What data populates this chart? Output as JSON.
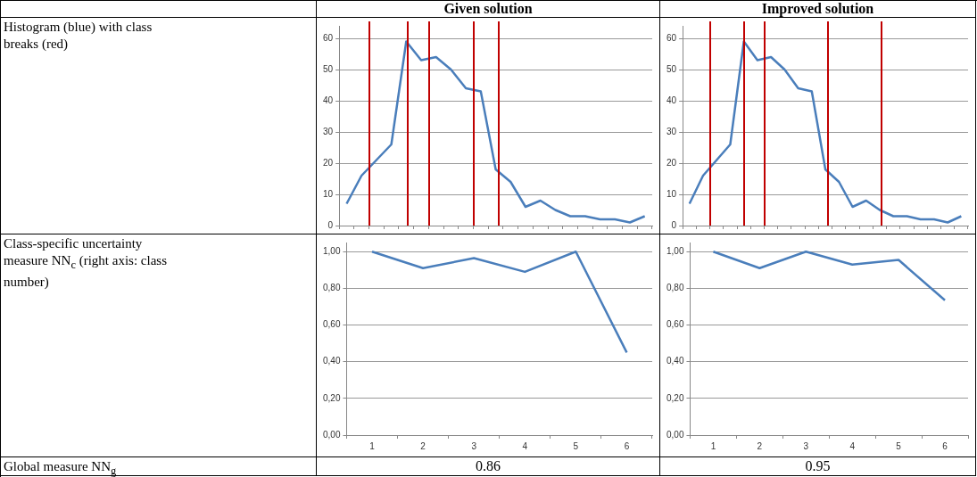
{
  "chart_data": [
    {
      "type": "other",
      "annotations": [
        "Histogram (blue) with class breaks (red)",
        "Class-specific uncertainty measure NN$_{c}$ (right axis: class number)",
        "Global measure NN$_{g}$"
      ]
    },
    {
      "type": "line",
      "title": "Given solution",
      "categories": [
        null,
        null,
        null,
        null,
        null,
        null,
        null,
        null,
        null,
        null,
        null,
        null,
        null,
        null,
        null,
        null,
        null,
        null,
        null,
        null,
        null
      ],
      "series": [
        {
          "color": "#4a7ebb",
          "values": [
            7,
            16,
            21,
            26,
            59,
            53,
            54,
            50,
            44,
            43,
            18,
            14,
            6,
            8,
            5,
            3,
            3,
            2,
            2,
            1,
            3
          ]
        }
      ],
      "ylim": [
        0,
        64
      ],
      "yticks": [
        0,
        10,
        20,
        30,
        40,
        50,
        60
      ],
      "tick_labels": "y",
      "grid": "y",
      "marker": "none",
      "line_style": "solid",
      "legend": false
    },
    {
      "type": "line",
      "title": "Improved solution",
      "categories": [
        null,
        null,
        null,
        null,
        null,
        null,
        null,
        null,
        null,
        null,
        null,
        null,
        null,
        null,
        null,
        null,
        null,
        null,
        null,
        null,
        null
      ],
      "series": [
        {
          "color": "#4a7ebb",
          "values": [
            7,
            16,
            21,
            26,
            59,
            53,
            54,
            50,
            44,
            43,
            18,
            14,
            6,
            8,
            5,
            3,
            3,
            2,
            2,
            1,
            3
          ]
        }
      ],
      "ylim": [
        0,
        64
      ],
      "yticks": [
        0,
        10,
        20,
        30,
        40,
        50,
        60
      ],
      "tick_labels": "y",
      "grid": "y",
      "marker": "none",
      "line_style": "solid",
      "legend": false
    },
    {
      "type": "line",
      "categories": [
        "1",
        "2",
        "3",
        "4",
        "5",
        "6"
      ],
      "series": [
        {
          "color": "#4a7ebb",
          "values": [
            1.0,
            0.91,
            0.965,
            0.89,
            1.0,
            0.45
          ]
        }
      ],
      "ylim": [
        0,
        1.05
      ],
      "yticks": [
        {
          "value": 0,
          "label": "0,00"
        },
        {
          "value": 0.2,
          "label": "0,20"
        },
        {
          "value": 0.4,
          "label": "0,40"
        },
        {
          "value": 0.6,
          "label": "0,60"
        },
        {
          "value": 0.8,
          "label": "0,80"
        },
        {
          "value": 1,
          "label": "1,00"
        }
      ],
      "grid": "y",
      "marker": "none",
      "line_style": "solid",
      "legend": false,
      "annotations": [
        "0.86"
      ]
    },
    {
      "type": "line",
      "categories": [
        "1",
        "2",
        "3",
        "4",
        "5",
        "6"
      ],
      "series": [
        {
          "color": "#4a7ebb",
          "values": [
            1.0,
            0.91,
            1.0,
            0.93,
            0.955,
            0.735
          ]
        }
      ],
      "ylim": [
        0,
        1.05
      ],
      "yticks": [
        {
          "value": 0,
          "label": "0,00"
        },
        {
          "value": 0.2,
          "label": "0,20"
        },
        {
          "value": 0.4,
          "label": "0,40"
        },
        {
          "value": 0.6,
          "label": "0,60"
        },
        {
          "value": 0.8,
          "label": "0,80"
        },
        {
          "value": 1,
          "label": "1,00"
        }
      ],
      "grid": "y",
      "marker": "none",
      "line_style": "solid",
      "legend": false,
      "annotations": [
        "0.95"
      ]
    }
  ]
}
